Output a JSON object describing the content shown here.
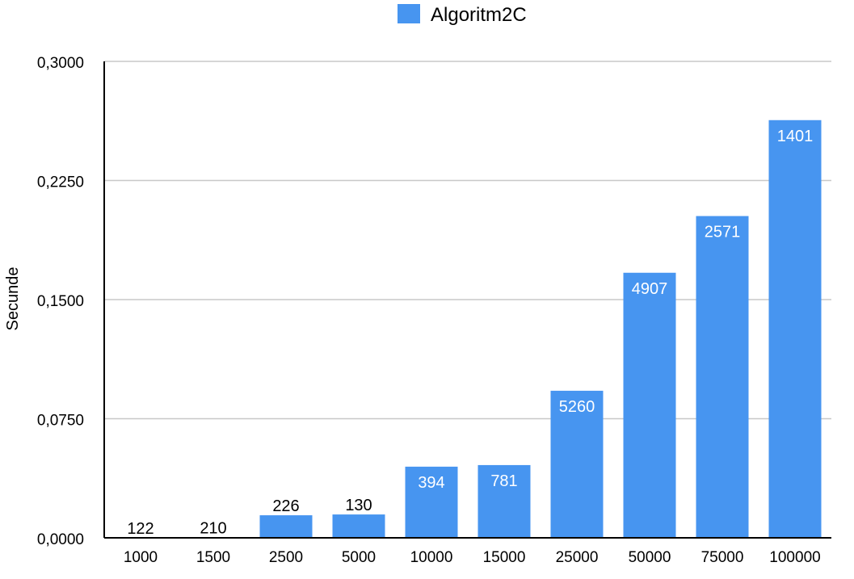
{
  "chart_data": {
    "type": "bar",
    "title": "",
    "xlabel": "",
    "ylabel": "Secunde",
    "ylim": [
      0,
      0.3
    ],
    "yticks": [
      0,
      0.075,
      0.15,
      0.225,
      0.3
    ],
    "ytick_labels": [
      "0,0000",
      "0,0750",
      "0,1500",
      "0,2250",
      "0,3000"
    ],
    "grid": true,
    "legend_position": "top-center",
    "categories": [
      "1000",
      "1500",
      "2500",
      "5000",
      "10000",
      "15000",
      "25000",
      "50000",
      "75000",
      "100000"
    ],
    "series": [
      {
        "name": "Algoritm2C",
        "color": "#4795f0",
        "values": [
          0.0001,
          0.0002,
          0.0142,
          0.0147,
          0.0448,
          0.0458,
          0.0926,
          0.1669,
          0.2026,
          0.263
        ],
        "data_labels": [
          "122",
          "210",
          "226",
          "130",
          "394",
          "781",
          "5260",
          "4907",
          "2571",
          "1401"
        ]
      }
    ]
  }
}
